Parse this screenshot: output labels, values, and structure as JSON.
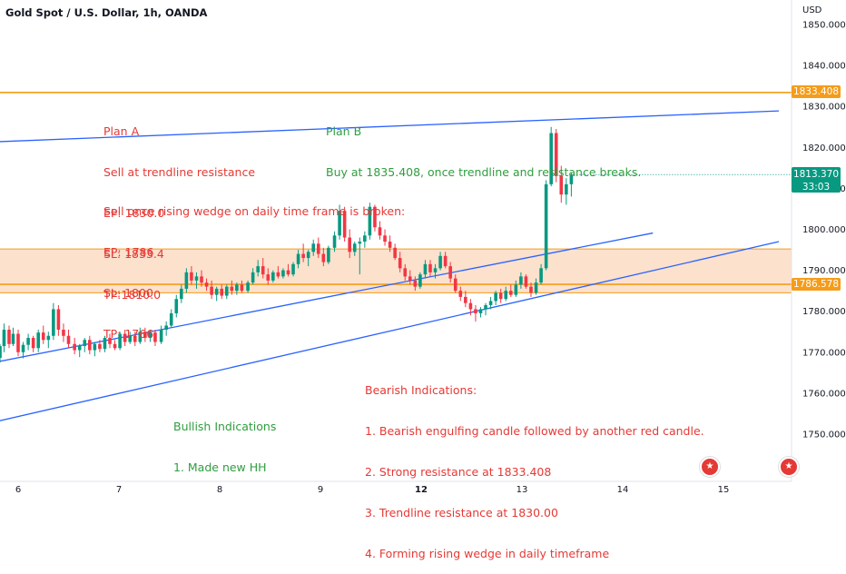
{
  "header": {
    "title": "Gold Spot / U.S. Dollar, 1h, OANDA",
    "currency": "USD"
  },
  "colors": {
    "up": "#089981",
    "down": "#f23645",
    "trendline": "#2962ff",
    "resistance": "#f59c1a",
    "zone": "#fcdcc4",
    "red_text": "#e53935",
    "green_text": "#2e9e3e"
  },
  "annotations": {
    "planA": [
      "Plan A",
      "Sell at trendline resistance",
      "EP: 1830.0",
      "SL: 1833.4",
      "TP:1810.0"
    ],
    "planB": [
      "Plan B",
      "Buy at 1835.408, once trendline and resistance breaks."
    ],
    "wedge": [
      "Sell once rising wedge on daily time frame is broken:",
      "EP: 1786",
      "SL: 1800",
      "TP: 1766"
    ],
    "bearish": [
      "Bearish Indications:",
      "1. Bearish engulfing candle followed by another red candle.",
      "2. Strong resistance at 1833.408",
      "3. Trendline resistance at 1830.00",
      "4. Forming rising wedge in daily timeframe"
    ],
    "bullish": [
      "Bullish Indications",
      "1. Made new HH"
    ]
  },
  "price_labels": {
    "resistance": "1833.408",
    "last": "1813.370",
    "countdown": "33:03",
    "support": "1786.578"
  },
  "chart_data": {
    "type": "candlestick",
    "title": "Gold Spot / U.S. Dollar, 1h, OANDA",
    "ylim": [
      1741,
      1851
    ],
    "y_ticks": [
      1750,
      1760,
      1770,
      1780,
      1790,
      1800,
      1810,
      1820,
      1830,
      1840,
      1850
    ],
    "y_tick_labels": [
      "1750.000",
      "1760.000",
      "1770.000",
      "1780.000",
      "1790.000",
      "1800.000",
      "1810.000",
      "1820.000",
      "1830.000",
      "1840.000",
      "1850.000"
    ],
    "x_ticks": [
      {
        "label": "6",
        "day": 6,
        "bold": false
      },
      {
        "label": "7",
        "day": 7,
        "bold": false
      },
      {
        "label": "8",
        "day": 8,
        "bold": false
      },
      {
        "label": "9",
        "day": 9,
        "bold": false
      },
      {
        "label": "12",
        "day": 10,
        "bold": true
      },
      {
        "label": "13",
        "day": 11,
        "bold": false
      },
      {
        "label": "14",
        "day": 12,
        "bold": false
      },
      {
        "label": "15",
        "day": 13,
        "bold": false
      }
    ],
    "horizontal_lines": [
      {
        "name": "resistance",
        "price": 1833.408
      },
      {
        "name": "zone-top",
        "price": 1795.2
      },
      {
        "name": "support",
        "price": 1786.578
      },
      {
        "name": "zone-bottom",
        "price": 1784.5
      }
    ],
    "trendlines": [
      {
        "name": "wedge-upper",
        "p1": {
          "day": 5.7,
          "price": 1821.3
        },
        "p2": {
          "day": 13.55,
          "price": 1828.9
        }
      },
      {
        "name": "wedge-mid",
        "p1": {
          "day": 5.7,
          "price": 1767.2
        },
        "p2": {
          "day": 12.3,
          "price": 1799.1
        }
      },
      {
        "name": "wedge-lower",
        "p1": {
          "day": 5.7,
          "price": 1752.6
        },
        "p2": {
          "day": 13.55,
          "price": 1797.0
        }
      }
    ],
    "candles": [
      {
        "day": 5.72,
        "o": 1767.5,
        "h": 1768.5,
        "l": 1765.8,
        "c": 1766.8
      },
      {
        "day": 5.77,
        "o": 1766.8,
        "h": 1769.5,
        "l": 1765.5,
        "c": 1768.6
      },
      {
        "day": 5.82,
        "o": 1768.6,
        "h": 1772.0,
        "l": 1767.5,
        "c": 1771.5
      },
      {
        "day": 5.86,
        "o": 1771.5,
        "h": 1777.0,
        "l": 1770.0,
        "c": 1775.5
      },
      {
        "day": 5.91,
        "o": 1775.5,
        "h": 1776.5,
        "l": 1771.0,
        "c": 1772.0
      },
      {
        "day": 5.95,
        "o": 1772.0,
        "h": 1776.0,
        "l": 1771.5,
        "c": 1774.5
      },
      {
        "day": 6.0,
        "o": 1774.5,
        "h": 1775.5,
        "l": 1769.0,
        "c": 1770.0
      },
      {
        "day": 6.05,
        "o": 1770.0,
        "h": 1772.5,
        "l": 1768.5,
        "c": 1771.8
      },
      {
        "day": 6.1,
        "o": 1771.8,
        "h": 1774.5,
        "l": 1770.5,
        "c": 1773.5
      },
      {
        "day": 6.15,
        "o": 1773.5,
        "h": 1774.0,
        "l": 1770.0,
        "c": 1771.0
      },
      {
        "day": 6.2,
        "o": 1771.0,
        "h": 1775.5,
        "l": 1770.0,
        "c": 1774.8
      },
      {
        "day": 6.25,
        "o": 1774.8,
        "h": 1776.5,
        "l": 1772.0,
        "c": 1773.0
      },
      {
        "day": 6.3,
        "o": 1773.0,
        "h": 1775.0,
        "l": 1771.0,
        "c": 1774.0
      },
      {
        "day": 6.35,
        "o": 1774.0,
        "h": 1782.0,
        "l": 1773.0,
        "c": 1780.5
      },
      {
        "day": 6.4,
        "o": 1780.5,
        "h": 1781.5,
        "l": 1774.0,
        "c": 1775.5
      },
      {
        "day": 6.45,
        "o": 1775.5,
        "h": 1777.0,
        "l": 1772.5,
        "c": 1774.0
      },
      {
        "day": 6.5,
        "o": 1774.0,
        "h": 1775.5,
        "l": 1771.0,
        "c": 1772.0
      },
      {
        "day": 6.56,
        "o": 1772.0,
        "h": 1773.5,
        "l": 1769.5,
        "c": 1770.5
      },
      {
        "day": 6.61,
        "o": 1770.5,
        "h": 1772.0,
        "l": 1768.8,
        "c": 1771.5
      },
      {
        "day": 6.66,
        "o": 1771.5,
        "h": 1773.5,
        "l": 1770.0,
        "c": 1773.0
      },
      {
        "day": 6.71,
        "o": 1773.0,
        "h": 1774.0,
        "l": 1769.5,
        "c": 1770.5
      },
      {
        "day": 6.76,
        "o": 1770.5,
        "h": 1772.5,
        "l": 1769.0,
        "c": 1772.0
      },
      {
        "day": 6.81,
        "o": 1772.0,
        "h": 1773.0,
        "l": 1770.0,
        "c": 1770.8
      },
      {
        "day": 6.86,
        "o": 1770.8,
        "h": 1774.0,
        "l": 1770.0,
        "c": 1773.5
      },
      {
        "day": 6.91,
        "o": 1773.5,
        "h": 1774.5,
        "l": 1771.0,
        "c": 1772.0
      },
      {
        "day": 6.96,
        "o": 1772.0,
        "h": 1773.0,
        "l": 1770.5,
        "c": 1771.0
      },
      {
        "day": 7.01,
        "o": 1771.0,
        "h": 1775.0,
        "l": 1770.5,
        "c": 1774.5
      },
      {
        "day": 7.06,
        "o": 1774.5,
        "h": 1775.5,
        "l": 1771.5,
        "c": 1772.5
      },
      {
        "day": 7.11,
        "o": 1772.5,
        "h": 1775.0,
        "l": 1772.0,
        "c": 1774.0
      },
      {
        "day": 7.16,
        "o": 1774.0,
        "h": 1775.0,
        "l": 1771.5,
        "c": 1772.5
      },
      {
        "day": 7.21,
        "o": 1772.5,
        "h": 1776.0,
        "l": 1772.0,
        "c": 1775.0
      },
      {
        "day": 7.26,
        "o": 1775.0,
        "h": 1776.0,
        "l": 1772.5,
        "c": 1773.5
      },
      {
        "day": 7.31,
        "o": 1773.5,
        "h": 1775.5,
        "l": 1772.5,
        "c": 1774.8
      },
      {
        "day": 7.36,
        "o": 1774.8,
        "h": 1775.5,
        "l": 1771.5,
        "c": 1772.5
      },
      {
        "day": 7.42,
        "o": 1772.5,
        "h": 1776.5,
        "l": 1772.0,
        "c": 1775.5
      },
      {
        "day": 7.47,
        "o": 1775.5,
        "h": 1777.5,
        "l": 1774.0,
        "c": 1776.5
      },
      {
        "day": 7.52,
        "o": 1776.5,
        "h": 1780.5,
        "l": 1776.0,
        "c": 1779.5
      },
      {
        "day": 7.57,
        "o": 1779.5,
        "h": 1784.0,
        "l": 1778.5,
        "c": 1783.0
      },
      {
        "day": 7.62,
        "o": 1783.0,
        "h": 1786.5,
        "l": 1782.0,
        "c": 1785.5
      },
      {
        "day": 7.67,
        "o": 1785.5,
        "h": 1790.5,
        "l": 1784.5,
        "c": 1789.5
      },
      {
        "day": 7.72,
        "o": 1789.5,
        "h": 1791.0,
        "l": 1786.5,
        "c": 1787.5
      },
      {
        "day": 7.77,
        "o": 1787.5,
        "h": 1789.5,
        "l": 1785.5,
        "c": 1788.5
      },
      {
        "day": 7.82,
        "o": 1788.5,
        "h": 1790.0,
        "l": 1786.0,
        "c": 1787.0
      },
      {
        "day": 7.87,
        "o": 1787.0,
        "h": 1788.0,
        "l": 1785.0,
        "c": 1786.0
      },
      {
        "day": 7.92,
        "o": 1786.0,
        "h": 1787.5,
        "l": 1783.0,
        "c": 1784.0
      },
      {
        "day": 7.97,
        "o": 1784.0,
        "h": 1786.0,
        "l": 1782.5,
        "c": 1785.5
      },
      {
        "day": 8.02,
        "o": 1785.5,
        "h": 1786.5,
        "l": 1783.0,
        "c": 1783.8
      },
      {
        "day": 8.07,
        "o": 1783.8,
        "h": 1786.5,
        "l": 1783.0,
        "c": 1786.0
      },
      {
        "day": 8.12,
        "o": 1786.0,
        "h": 1787.5,
        "l": 1784.0,
        "c": 1785.0
      },
      {
        "day": 8.17,
        "o": 1785.0,
        "h": 1787.0,
        "l": 1784.0,
        "c": 1786.5
      },
      {
        "day": 8.22,
        "o": 1786.5,
        "h": 1787.5,
        "l": 1784.5,
        "c": 1785.0
      },
      {
        "day": 8.28,
        "o": 1785.0,
        "h": 1787.5,
        "l": 1784.5,
        "c": 1787.0
      },
      {
        "day": 8.33,
        "o": 1787.0,
        "h": 1790.5,
        "l": 1786.5,
        "c": 1789.5
      },
      {
        "day": 8.38,
        "o": 1789.5,
        "h": 1792.5,
        "l": 1788.5,
        "c": 1791.0
      },
      {
        "day": 8.43,
        "o": 1791.0,
        "h": 1793.0,
        "l": 1788.0,
        "c": 1789.0
      },
      {
        "day": 8.48,
        "o": 1789.0,
        "h": 1790.5,
        "l": 1786.5,
        "c": 1787.5
      },
      {
        "day": 8.53,
        "o": 1787.5,
        "h": 1790.0,
        "l": 1787.0,
        "c": 1789.5
      },
      {
        "day": 8.58,
        "o": 1789.5,
        "h": 1791.0,
        "l": 1788.0,
        "c": 1788.5
      },
      {
        "day": 8.63,
        "o": 1788.5,
        "h": 1790.5,
        "l": 1788.0,
        "c": 1790.0
      },
      {
        "day": 8.68,
        "o": 1790.0,
        "h": 1791.5,
        "l": 1788.5,
        "c": 1789.0
      },
      {
        "day": 8.73,
        "o": 1789.0,
        "h": 1792.0,
        "l": 1788.5,
        "c": 1791.5
      },
      {
        "day": 8.78,
        "o": 1791.5,
        "h": 1795.0,
        "l": 1790.5,
        "c": 1794.0
      },
      {
        "day": 8.83,
        "o": 1794.0,
        "h": 1796.5,
        "l": 1792.0,
        "c": 1793.0
      },
      {
        "day": 8.88,
        "o": 1793.0,
        "h": 1795.0,
        "l": 1791.0,
        "c": 1794.5
      },
      {
        "day": 8.93,
        "o": 1794.5,
        "h": 1797.5,
        "l": 1793.5,
        "c": 1796.5
      },
      {
        "day": 8.98,
        "o": 1796.5,
        "h": 1798.0,
        "l": 1793.0,
        "c": 1794.0
      },
      {
        "day": 9.03,
        "o": 1794.0,
        "h": 1795.5,
        "l": 1791.0,
        "c": 1792.0
      },
      {
        "day": 9.08,
        "o": 1792.0,
        "h": 1796.0,
        "l": 1791.5,
        "c": 1795.5
      },
      {
        "day": 9.14,
        "o": 1795.5,
        "h": 1799.5,
        "l": 1794.5,
        "c": 1798.5
      },
      {
        "day": 9.19,
        "o": 1798.5,
        "h": 1806.0,
        "l": 1797.5,
        "c": 1804.5
      },
      {
        "day": 9.24,
        "o": 1804.5,
        "h": 1805.5,
        "l": 1797.0,
        "c": 1798.0
      },
      {
        "day": 9.29,
        "o": 1798.0,
        "h": 1800.0,
        "l": 1793.0,
        "c": 1794.5
      },
      {
        "day": 9.34,
        "o": 1794.5,
        "h": 1797.0,
        "l": 1793.5,
        "c": 1796.5
      },
      {
        "day": 9.39,
        "o": 1796.5,
        "h": 1798.0,
        "l": 1789.0,
        "c": 1797.0
      },
      {
        "day": 9.44,
        "o": 1797.0,
        "h": 1799.5,
        "l": 1795.5,
        "c": 1798.5
      },
      {
        "day": 9.49,
        "o": 1798.5,
        "h": 1806.5,
        "l": 1797.5,
        "c": 1805.5
      },
      {
        "day": 9.54,
        "o": 1805.5,
        "h": 1806.0,
        "l": 1799.5,
        "c": 1800.5
      },
      {
        "day": 9.59,
        "o": 1800.5,
        "h": 1802.0,
        "l": 1797.5,
        "c": 1798.5
      },
      {
        "day": 9.64,
        "o": 1798.5,
        "h": 1800.0,
        "l": 1796.0,
        "c": 1797.0
      },
      {
        "day": 9.69,
        "o": 1797.0,
        "h": 1798.5,
        "l": 1794.5,
        "c": 1795.5
      },
      {
        "day": 9.74,
        "o": 1795.5,
        "h": 1796.5,
        "l": 1792.5,
        "c": 1793.0
      },
      {
        "day": 9.79,
        "o": 1793.0,
        "h": 1794.5,
        "l": 1789.5,
        "c": 1790.5
      },
      {
        "day": 9.84,
        "o": 1790.5,
        "h": 1791.5,
        "l": 1787.5,
        "c": 1788.5
      },
      {
        "day": 9.89,
        "o": 1788.5,
        "h": 1790.0,
        "l": 1786.5,
        "c": 1787.5
      },
      {
        "day": 9.94,
        "o": 1787.5,
        "h": 1788.5,
        "l": 1785.0,
        "c": 1786.0
      },
      {
        "day": 9.99,
        "o": 1786.0,
        "h": 1789.5,
        "l": 1785.5,
        "c": 1789.0
      },
      {
        "day": 10.04,
        "o": 1789.0,
        "h": 1792.5,
        "l": 1788.0,
        "c": 1791.5
      },
      {
        "day": 10.09,
        "o": 1791.5,
        "h": 1792.5,
        "l": 1788.5,
        "c": 1789.5
      },
      {
        "day": 10.14,
        "o": 1789.5,
        "h": 1791.5,
        "l": 1788.0,
        "c": 1790.5
      },
      {
        "day": 10.19,
        "o": 1790.5,
        "h": 1794.5,
        "l": 1790.0,
        "c": 1793.5
      },
      {
        "day": 10.24,
        "o": 1793.5,
        "h": 1794.5,
        "l": 1790.5,
        "c": 1791.0
      },
      {
        "day": 10.29,
        "o": 1791.0,
        "h": 1792.0,
        "l": 1787.0,
        "c": 1788.0
      },
      {
        "day": 10.34,
        "o": 1788.0,
        "h": 1789.0,
        "l": 1784.5,
        "c": 1785.0
      },
      {
        "day": 10.39,
        "o": 1785.0,
        "h": 1786.0,
        "l": 1782.5,
        "c": 1783.5
      },
      {
        "day": 10.44,
        "o": 1783.5,
        "h": 1785.0,
        "l": 1781.0,
        "c": 1782.0
      },
      {
        "day": 10.49,
        "o": 1782.0,
        "h": 1783.0,
        "l": 1779.0,
        "c": 1780.5
      },
      {
        "day": 10.54,
        "o": 1780.5,
        "h": 1781.5,
        "l": 1777.5,
        "c": 1779.5
      },
      {
        "day": 10.59,
        "o": 1779.5,
        "h": 1781.0,
        "l": 1778.5,
        "c": 1780.5
      },
      {
        "day": 10.64,
        "o": 1780.5,
        "h": 1782.0,
        "l": 1779.0,
        "c": 1781.5
      },
      {
        "day": 10.69,
        "o": 1781.5,
        "h": 1783.5,
        "l": 1780.5,
        "c": 1782.5
      },
      {
        "day": 10.74,
        "o": 1782.5,
        "h": 1785.0,
        "l": 1781.5,
        "c": 1784.5
      },
      {
        "day": 10.79,
        "o": 1784.5,
        "h": 1785.5,
        "l": 1782.0,
        "c": 1783.0
      },
      {
        "day": 10.84,
        "o": 1783.0,
        "h": 1786.0,
        "l": 1782.5,
        "c": 1785.0
      },
      {
        "day": 10.89,
        "o": 1785.0,
        "h": 1786.5,
        "l": 1783.5,
        "c": 1784.0
      },
      {
        "day": 10.94,
        "o": 1784.0,
        "h": 1787.5,
        "l": 1783.5,
        "c": 1786.5
      },
      {
        "day": 10.99,
        "o": 1786.5,
        "h": 1789.5,
        "l": 1785.5,
        "c": 1788.5
      },
      {
        "day": 11.04,
        "o": 1788.5,
        "h": 1789.0,
        "l": 1785.5,
        "c": 1786.0
      },
      {
        "day": 11.09,
        "o": 1786.0,
        "h": 1787.0,
        "l": 1783.5,
        "c": 1784.5
      },
      {
        "day": 11.14,
        "o": 1784.5,
        "h": 1788.0,
        "l": 1784.0,
        "c": 1787.0
      },
      {
        "day": 11.19,
        "o": 1787.0,
        "h": 1791.5,
        "l": 1786.5,
        "c": 1790.5
      },
      {
        "day": 11.24,
        "o": 1790.5,
        "h": 1812.0,
        "l": 1790.0,
        "c": 1811.0
      },
      {
        "day": 11.29,
        "o": 1811.0,
        "h": 1825.0,
        "l": 1810.5,
        "c": 1823.5
      },
      {
        "day": 11.34,
        "o": 1823.5,
        "h": 1824.5,
        "l": 1811.5,
        "c": 1813.0
      },
      {
        "day": 11.39,
        "o": 1813.0,
        "h": 1815.5,
        "l": 1806.5,
        "c": 1808.5
      },
      {
        "day": 11.44,
        "o": 1808.5,
        "h": 1812.5,
        "l": 1806.0,
        "c": 1811.0
      },
      {
        "day": 11.49,
        "o": 1811.0,
        "h": 1813.8,
        "l": 1808.0,
        "c": 1813.37
      }
    ]
  }
}
